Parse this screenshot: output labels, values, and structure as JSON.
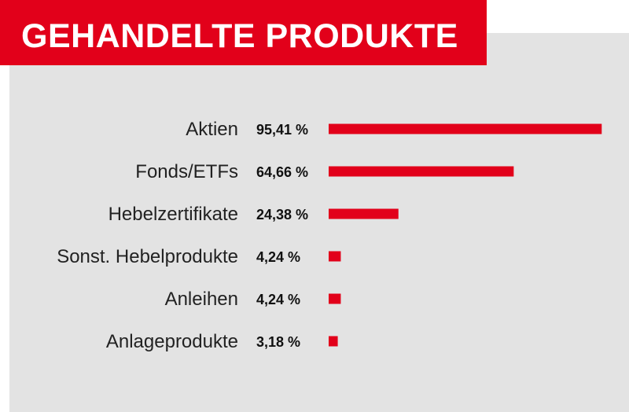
{
  "header": {
    "title": "GEHANDELTE PRODUKTE"
  },
  "colors": {
    "accent": "#e2001a",
    "panel": "#e3e3e3"
  },
  "chart_data": {
    "type": "bar",
    "orientation": "horizontal",
    "categories": [
      "Aktien",
      "Fonds/ETFs",
      "Hebelzertifikate",
      "Sonst. Hebelprodukte",
      "Anleihen",
      "Anlageprodukte"
    ],
    "values": [
      95.41,
      64.66,
      24.38,
      4.24,
      4.24,
      3.18
    ],
    "value_labels": [
      "95,41 %",
      "64,66 %",
      "24,38 %",
      "4,24 %",
      "4,24 %",
      "3,18 %"
    ],
    "title": "GEHANDELTE PRODUKTE",
    "xlim": [
      0,
      100
    ],
    "grid": false,
    "legend": "none"
  }
}
